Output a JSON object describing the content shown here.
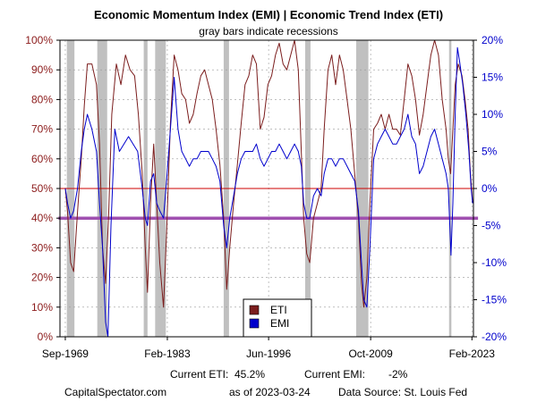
{
  "colors": {
    "eti": "#7b1d1d",
    "emi": "#0000cc",
    "left_axis": "#8b1a1a",
    "right_axis": "#0000cc",
    "recession": "#c0c0c0",
    "line50": "#cc0000",
    "line40": "#a050b0",
    "grid": "#999999"
  },
  "footer": {
    "current_eti_label": "Current ETI:",
    "current_eti_value": "45.2%",
    "current_emi_label": "Current EMI:",
    "current_emi_value": "-2%",
    "site": "CapitalSpectator.com",
    "asof": "as of 2023-03-24",
    "source": "Data Source: St. Louis Fed"
  },
  "chart_data": {
    "type": "line",
    "title": "Economic Momentum Index (EMI) | Economic Trend Index (ETI)",
    "subtitle": "gray bars indicate recessions",
    "x_range": [
      1969.0,
      2023.3
    ],
    "x_ticks": [
      {
        "x": 1969.7,
        "label": "Sep-1969"
      },
      {
        "x": 1983.1,
        "label": "Feb-1983"
      },
      {
        "x": 1996.4,
        "label": "Jun-1996"
      },
      {
        "x": 2009.8,
        "label": "Oct-2009"
      },
      {
        "x": 2023.1,
        "label": "Feb-2023"
      }
    ],
    "left_axis": {
      "ylim": [
        0,
        100
      ],
      "ticks": [
        "0%",
        "10%",
        "20%",
        "30%",
        "40%",
        "50%",
        "60%",
        "70%",
        "80%",
        "90%",
        "100%"
      ]
    },
    "right_axis": {
      "ylim": [
        -20,
        20
      ],
      "ticks": [
        "-20%",
        "-15%",
        "-10%",
        "-5%",
        "0%",
        "5%",
        "10%",
        "15%",
        "20%"
      ]
    },
    "grid": true,
    "legend_position": "bottom-center",
    "reference_lines": [
      {
        "axis": "left",
        "value": 50
      },
      {
        "axis": "left",
        "value": 40
      }
    ],
    "recessions": [
      [
        1969.9,
        1970.9
      ],
      [
        1973.9,
        1975.2
      ],
      [
        1980.0,
        1980.5
      ],
      [
        1981.5,
        1982.9
      ],
      [
        1990.5,
        1991.2
      ],
      [
        2001.2,
        2001.9
      ],
      [
        2007.9,
        2009.5
      ],
      [
        2020.1,
        2020.4
      ]
    ],
    "series": [
      {
        "name": "ETI",
        "axis": "left",
        "points": [
          [
            1969.7,
            50
          ],
          [
            1970.0,
            42
          ],
          [
            1970.4,
            25
          ],
          [
            1970.8,
            22
          ],
          [
            1971.3,
            42
          ],
          [
            1971.8,
            60
          ],
          [
            1972.2,
            78
          ],
          [
            1972.6,
            92
          ],
          [
            1973.2,
            92
          ],
          [
            1973.8,
            85
          ],
          [
            1974.2,
            65
          ],
          [
            1974.6,
            30
          ],
          [
            1975.0,
            18
          ],
          [
            1975.4,
            42
          ],
          [
            1975.8,
            75
          ],
          [
            1976.4,
            92
          ],
          [
            1977.0,
            85
          ],
          [
            1977.6,
            95
          ],
          [
            1978.2,
            90
          ],
          [
            1978.8,
            88
          ],
          [
            1979.3,
            75
          ],
          [
            1979.8,
            55
          ],
          [
            1980.2,
            30
          ],
          [
            1980.5,
            15
          ],
          [
            1980.9,
            45
          ],
          [
            1981.3,
            65
          ],
          [
            1981.7,
            45
          ],
          [
            1982.1,
            25
          ],
          [
            1982.6,
            10
          ],
          [
            1983.0,
            35
          ],
          [
            1983.5,
            72
          ],
          [
            1984.0,
            95
          ],
          [
            1984.5,
            90
          ],
          [
            1985.0,
            82
          ],
          [
            1985.5,
            80
          ],
          [
            1986.0,
            72
          ],
          [
            1986.5,
            75
          ],
          [
            1987.0,
            82
          ],
          [
            1987.5,
            88
          ],
          [
            1988.0,
            90
          ],
          [
            1988.5,
            85
          ],
          [
            1989.0,
            80
          ],
          [
            1989.5,
            70
          ],
          [
            1990.0,
            58
          ],
          [
            1990.5,
            40
          ],
          [
            1990.9,
            16
          ],
          [
            1991.3,
            30
          ],
          [
            1991.8,
            45
          ],
          [
            1992.3,
            58
          ],
          [
            1992.8,
            72
          ],
          [
            1993.3,
            85
          ],
          [
            1993.8,
            88
          ],
          [
            1994.3,
            95
          ],
          [
            1994.8,
            92
          ],
          [
            1995.3,
            70
          ],
          [
            1995.8,
            74
          ],
          [
            1996.3,
            85
          ],
          [
            1996.8,
            88
          ],
          [
            1997.3,
            95
          ],
          [
            1997.8,
            99
          ],
          [
            1998.3,
            92
          ],
          [
            1998.8,
            90
          ],
          [
            1999.3,
            95
          ],
          [
            1999.8,
            100
          ],
          [
            2000.3,
            90
          ],
          [
            2000.7,
            62
          ],
          [
            2001.0,
            40
          ],
          [
            2001.4,
            28
          ],
          [
            2001.8,
            25
          ],
          [
            2002.3,
            40
          ],
          [
            2002.8,
            45
          ],
          [
            2003.3,
            50
          ],
          [
            2003.7,
            70
          ],
          [
            2004.2,
            90
          ],
          [
            2004.7,
            95
          ],
          [
            2005.2,
            85
          ],
          [
            2005.7,
            95
          ],
          [
            2006.2,
            90
          ],
          [
            2006.7,
            80
          ],
          [
            2007.2,
            70
          ],
          [
            2007.7,
            55
          ],
          [
            2008.2,
            40
          ],
          [
            2008.6,
            18
          ],
          [
            2008.9,
            10
          ],
          [
            2009.3,
            20
          ],
          [
            2009.7,
            45
          ],
          [
            2010.2,
            70
          ],
          [
            2010.7,
            72
          ],
          [
            2011.2,
            75
          ],
          [
            2011.7,
            70
          ],
          [
            2012.2,
            75
          ],
          [
            2012.7,
            70
          ],
          [
            2013.2,
            70
          ],
          [
            2013.7,
            68
          ],
          [
            2014.2,
            80
          ],
          [
            2014.7,
            92
          ],
          [
            2015.2,
            88
          ],
          [
            2015.7,
            80
          ],
          [
            2016.2,
            68
          ],
          [
            2016.7,
            75
          ],
          [
            2017.2,
            85
          ],
          [
            2017.7,
            95
          ],
          [
            2018.2,
            100
          ],
          [
            2018.7,
            95
          ],
          [
            2019.2,
            80
          ],
          [
            2019.7,
            70
          ],
          [
            2020.0,
            60
          ],
          [
            2020.3,
            55
          ],
          [
            2020.6,
            70
          ],
          [
            2020.9,
            85
          ],
          [
            2021.3,
            92
          ],
          [
            2021.8,
            88
          ],
          [
            2022.2,
            80
          ],
          [
            2022.6,
            70
          ],
          [
            2022.9,
            55
          ],
          [
            2023.2,
            45.2
          ]
        ]
      },
      {
        "name": "EMI",
        "axis": "right",
        "points": [
          [
            1969.7,
            0
          ],
          [
            1970.0,
            -2
          ],
          [
            1970.4,
            -4
          ],
          [
            1970.8,
            -3
          ],
          [
            1971.3,
            0
          ],
          [
            1971.8,
            5
          ],
          [
            1972.2,
            8
          ],
          [
            1972.6,
            10
          ],
          [
            1973.2,
            8
          ],
          [
            1973.8,
            5
          ],
          [
            1974.2,
            -2
          ],
          [
            1974.6,
            -8
          ],
          [
            1975.0,
            -18
          ],
          [
            1975.3,
            -20
          ],
          [
            1975.7,
            -5
          ],
          [
            1976.2,
            8
          ],
          [
            1976.8,
            5
          ],
          [
            1977.4,
            6
          ],
          [
            1978.0,
            7
          ],
          [
            1978.6,
            6
          ],
          [
            1979.2,
            5
          ],
          [
            1979.8,
            0
          ],
          [
            1980.2,
            -4
          ],
          [
            1980.5,
            -5
          ],
          [
            1980.9,
            1
          ],
          [
            1981.3,
            2
          ],
          [
            1981.7,
            -2
          ],
          [
            1982.1,
            -3
          ],
          [
            1982.6,
            -4
          ],
          [
            1983.0,
            1
          ],
          [
            1983.5,
            8
          ],
          [
            1984.0,
            15
          ],
          [
            1984.5,
            8
          ],
          [
            1985.0,
            5
          ],
          [
            1985.5,
            4
          ],
          [
            1986.0,
            3
          ],
          [
            1986.5,
            4
          ],
          [
            1987.0,
            4
          ],
          [
            1987.5,
            5
          ],
          [
            1988.0,
            5
          ],
          [
            1988.5,
            5
          ],
          [
            1989.0,
            4
          ],
          [
            1989.5,
            3
          ],
          [
            1990.0,
            1
          ],
          [
            1990.5,
            -5
          ],
          [
            1990.9,
            -8
          ],
          [
            1991.3,
            -4
          ],
          [
            1991.8,
            -1
          ],
          [
            1992.3,
            2
          ],
          [
            1992.8,
            4
          ],
          [
            1993.3,
            5
          ],
          [
            1993.8,
            5
          ],
          [
            1994.3,
            5
          ],
          [
            1994.8,
            6
          ],
          [
            1995.3,
            4
          ],
          [
            1995.8,
            3
          ],
          [
            1996.3,
            4
          ],
          [
            1996.8,
            5
          ],
          [
            1997.3,
            5
          ],
          [
            1997.8,
            6
          ],
          [
            1998.3,
            5
          ],
          [
            1998.8,
            4
          ],
          [
            1999.3,
            5
          ],
          [
            1999.8,
            6
          ],
          [
            2000.3,
            5
          ],
          [
            2000.7,
            3
          ],
          [
            2001.0,
            -2
          ],
          [
            2001.4,
            -4
          ],
          [
            2001.8,
            -4
          ],
          [
            2002.3,
            -1
          ],
          [
            2002.8,
            0
          ],
          [
            2003.3,
            -1
          ],
          [
            2003.7,
            2
          ],
          [
            2004.2,
            4
          ],
          [
            2004.7,
            4
          ],
          [
            2005.2,
            3
          ],
          [
            2005.7,
            4
          ],
          [
            2006.2,
            4
          ],
          [
            2006.7,
            3
          ],
          [
            2007.2,
            2
          ],
          [
            2007.7,
            1
          ],
          [
            2008.2,
            -3
          ],
          [
            2008.6,
            -10
          ],
          [
            2008.9,
            -15
          ],
          [
            2009.3,
            -16
          ],
          [
            2009.7,
            -8
          ],
          [
            2010.2,
            4
          ],
          [
            2010.7,
            6
          ],
          [
            2011.2,
            7
          ],
          [
            2011.7,
            8
          ],
          [
            2012.2,
            7
          ],
          [
            2012.7,
            6
          ],
          [
            2013.2,
            6
          ],
          [
            2013.7,
            7
          ],
          [
            2014.2,
            8
          ],
          [
            2014.7,
            10
          ],
          [
            2015.2,
            7
          ],
          [
            2015.7,
            6
          ],
          [
            2016.2,
            2
          ],
          [
            2016.7,
            3
          ],
          [
            2017.2,
            5
          ],
          [
            2017.7,
            7
          ],
          [
            2018.2,
            8
          ],
          [
            2018.7,
            6
          ],
          [
            2019.2,
            4
          ],
          [
            2019.7,
            2
          ],
          [
            2020.0,
            0
          ],
          [
            2020.2,
            -5
          ],
          [
            2020.35,
            -9
          ],
          [
            2020.6,
            -2
          ],
          [
            2020.9,
            10
          ],
          [
            2021.2,
            19
          ],
          [
            2021.5,
            17
          ],
          [
            2021.9,
            14
          ],
          [
            2022.3,
            10
          ],
          [
            2022.7,
            5
          ],
          [
            2023.0,
            0
          ],
          [
            2023.2,
            -2
          ]
        ]
      }
    ]
  }
}
